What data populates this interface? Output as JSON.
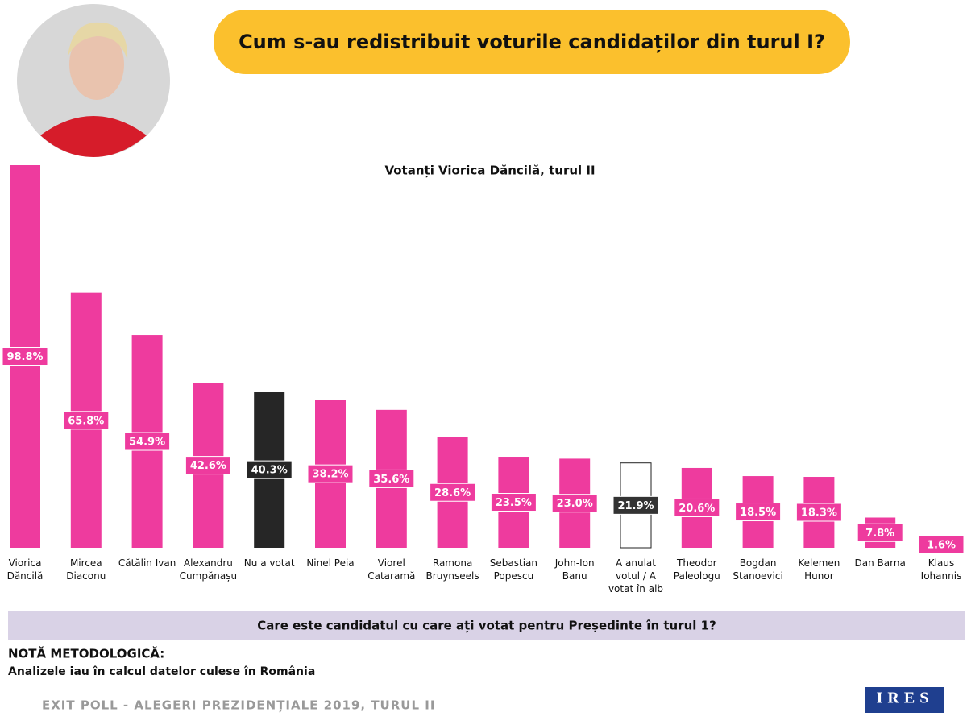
{
  "chart_data": {
    "type": "bar",
    "title": "Cum s-au redistribuit voturile candidaților din turul I?",
    "subtitle": "Votanți Viorica Dăncilă, turul II",
    "x_label": "Care este candidatul cu care ați votat pentru Președinte în turul 1?",
    "categories": [
      "Viorica\nDăncilă",
      "Mircea\nDiaconu",
      "Cătălin Ivan",
      "Alexandru\nCumpănașu",
      "Nu a votat",
      "Ninel Peia",
      "Viorel\nCataramă",
      "Ramona\nBruynseels",
      "Sebastian\nPopescu",
      "John-Ion\nBanu",
      "A anulat\nvotul / A\nvotat în alb",
      "Theodor\nPaleologu",
      "Bogdan\nStanoevici",
      "Kelemen\nHunor",
      "Dan Barna",
      "Klaus\nIohannis"
    ],
    "values": [
      98.8,
      65.8,
      54.9,
      42.6,
      40.3,
      38.2,
      35.6,
      28.6,
      23.5,
      23.0,
      21.9,
      20.6,
      18.5,
      18.3,
      7.8,
      1.6
    ],
    "value_labels": [
      "98.8%",
      "65.8%",
      "54.9%",
      "42.6%",
      "40.3%",
      "38.2%",
      "35.6%",
      "28.6%",
      "23.5%",
      "23.0%",
      "21.9%",
      "20.6%",
      "18.5%",
      "18.3%",
      "7.8%",
      "1.6%"
    ],
    "colors": [
      "#ee3b9e",
      "#ee3b9e",
      "#ee3b9e",
      "#ee3b9e",
      "#262626",
      "#ee3b9e",
      "#ee3b9e",
      "#ee3b9e",
      "#ee3b9e",
      "#ee3b9e",
      "#ffffff",
      "#ee3b9e",
      "#ee3b9e",
      "#ee3b9e",
      "#ee3b9e",
      "#ee3b9e"
    ],
    "label_box_colors": [
      "#ee3b9e",
      "#ee3b9e",
      "#ee3b9e",
      "#ee3b9e",
      "#262626",
      "#ee3b9e",
      "#ee3b9e",
      "#ee3b9e",
      "#ee3b9e",
      "#ee3b9e",
      "#333333",
      "#ee3b9e",
      "#ee3b9e",
      "#ee3b9e",
      "#ee3b9e",
      "#ee3b9e"
    ]
  },
  "note": {
    "title": "NOTĂ METODOLOGICĂ:",
    "text": "Analizele iau în calcul datelor culese în România"
  },
  "footer": "EXIT POLL - ALEGERI PREZIDENȚIALE 2019, TURUL II",
  "logo": "IRES"
}
